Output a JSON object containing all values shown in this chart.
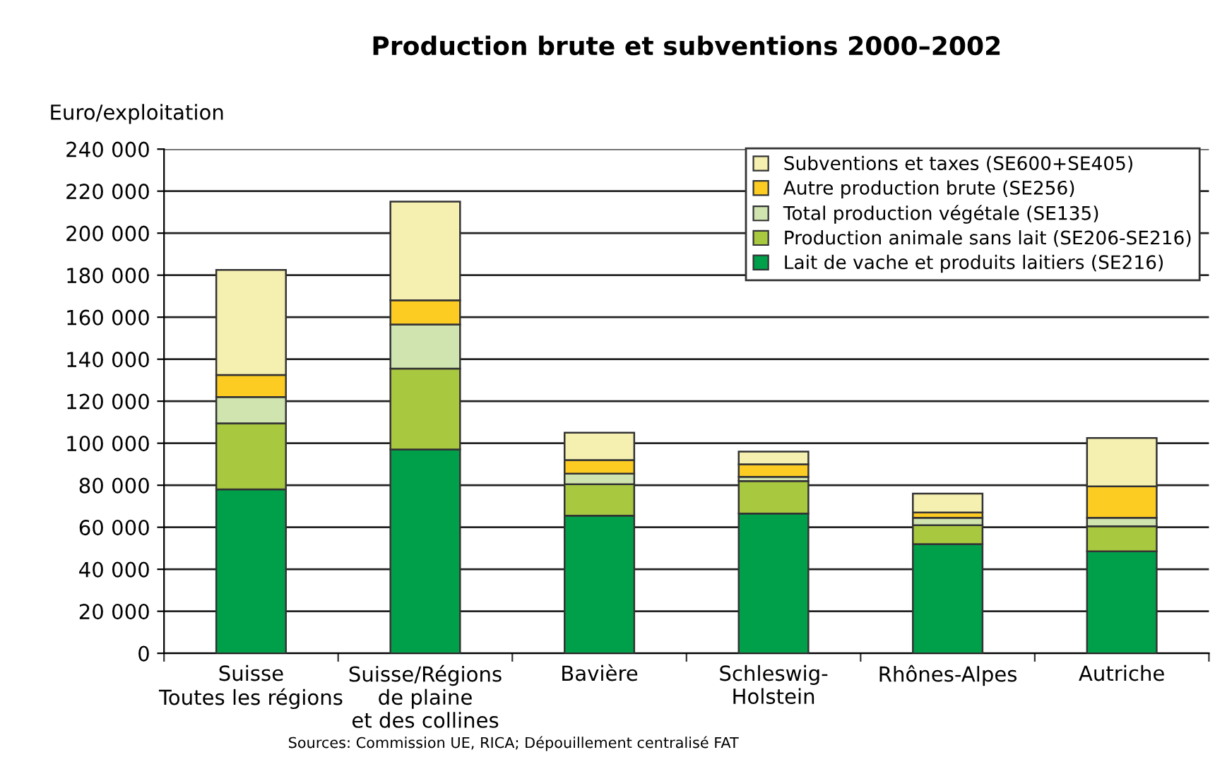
{
  "chart_data": {
    "type": "bar",
    "title": "Production brute et subventions 2000–2002",
    "ylabel": "Euro/exploitation",
    "categories": [
      "Suisse\nToutes les régions",
      "Suisse/Régions\nde plaine\net des collines",
      "Bavière",
      "Schleswig-\nHolstein",
      "Rhônes-Alpes",
      "Autriche"
    ],
    "stacked": true,
    "series": [
      {
        "name": "Lait de vache et produits laitiers (SE216)",
        "color": "#00a04b",
        "values": [
          78000,
          97000,
          65500,
          66500,
          52000,
          48500
        ]
      },
      {
        "name": "Production animale sans lait (SE206-SE216)",
        "color": "#a8c83f",
        "values": [
          31500,
          38500,
          15000,
          15500,
          9000,
          12000
        ]
      },
      {
        "name": "Total production végétale (SE135)",
        "color": "#d0e4b0",
        "values": [
          12500,
          21000,
          5000,
          2000,
          3500,
          4000
        ]
      },
      {
        "name": "Autre production brute (SE256)",
        "color": "#fccc22",
        "values": [
          10500,
          11500,
          6500,
          6000,
          2500,
          15000
        ]
      },
      {
        "name": "Subventions et taxes (SE600+SE405)",
        "color": "#f6f0b0",
        "values": [
          50000,
          47000,
          13000,
          6000,
          9000,
          23000
        ]
      }
    ],
    "ylim": [
      0,
      240000
    ],
    "yticks": [
      0,
      {
        "value": 20000,
        "label": "20 000"
      },
      {
        "value": 40000,
        "label": "40 000"
      },
      {
        "value": 60000,
        "label": "60 000"
      },
      {
        "value": 80000,
        "label": "80 000"
      },
      {
        "value": 100000,
        "label": "100 000"
      },
      {
        "value": 120000,
        "label": "120 000"
      },
      {
        "value": 140000,
        "label": "140 000"
      },
      {
        "value": 160000,
        "label": "160 000"
      },
      {
        "value": 180000,
        "label": "180 000"
      },
      {
        "value": 200000,
        "label": "200 000"
      },
      {
        "value": 220000,
        "label": "220 000"
      },
      {
        "value": 240000,
        "label": "240 000"
      }
    ],
    "grid": "y",
    "legend": "top right",
    "annotations": [
      "Sources: Commission UE, RICA; Dépouillement centralisé FAT"
    ]
  }
}
